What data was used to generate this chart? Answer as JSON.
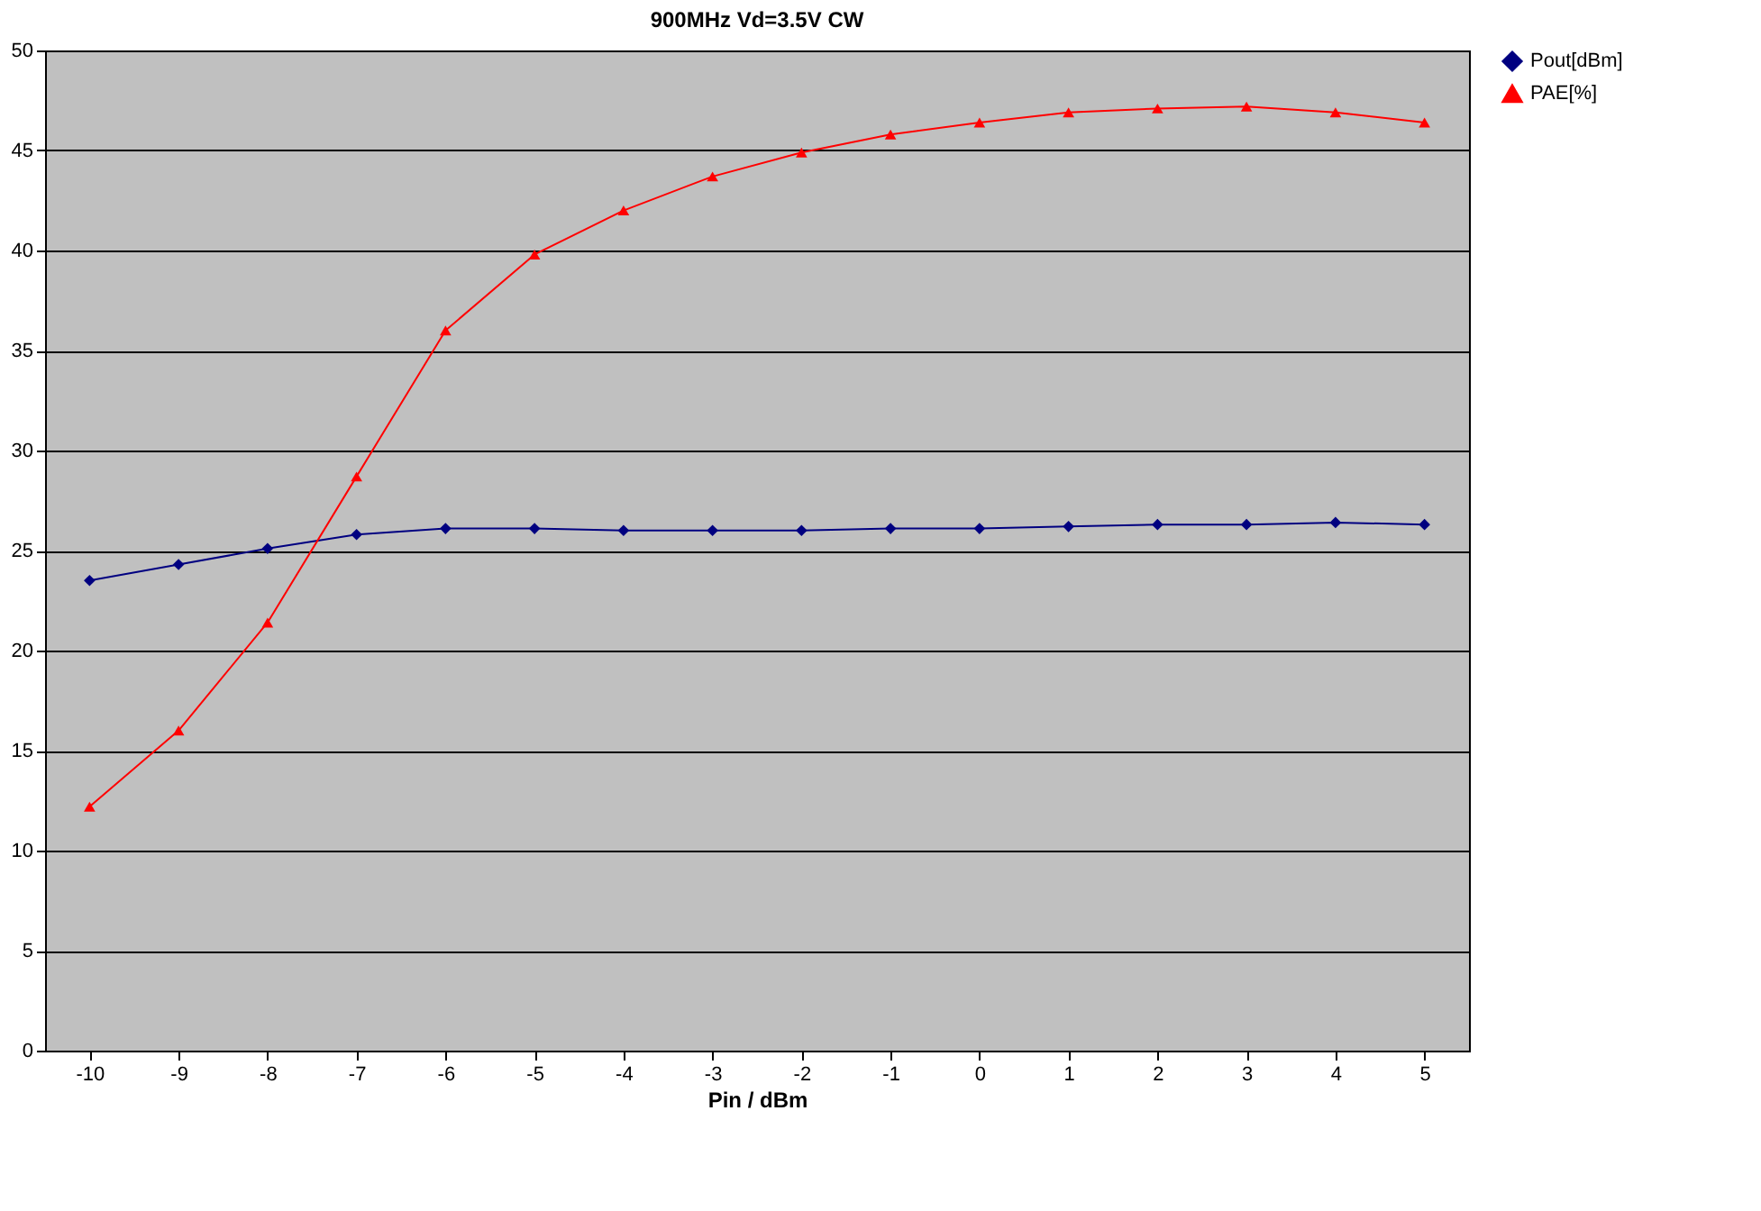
{
  "chart_data": {
    "type": "line",
    "title": "900MHz  Vd=3.5V  CW",
    "xlabel": "Pin / dBm",
    "categories": [
      "-10",
      "-9",
      "-8",
      "-7",
      "-6",
      "-5",
      "-4",
      "-3",
      "-2",
      "-1",
      "0",
      "1",
      "2",
      "3",
      "4",
      "5"
    ],
    "series": [
      {
        "name": "Pout[dBm]",
        "color": "#000080",
        "marker": "diamond",
        "values": [
          23.5,
          24.3,
          25.1,
          25.8,
          26.1,
          26.1,
          26.0,
          26.0,
          26.0,
          26.1,
          26.1,
          26.2,
          26.3,
          26.3,
          26.4,
          26.3
        ]
      },
      {
        "name": "PAE[%]",
        "color": "#ff0000",
        "marker": "triangle",
        "values": [
          12.2,
          16.0,
          21.4,
          28.7,
          36.0,
          39.8,
          42.0,
          43.7,
          44.9,
          45.8,
          46.4,
          46.9,
          47.1,
          47.2,
          46.9,
          46.4
        ]
      }
    ],
    "ylim": [
      0,
      50
    ],
    "yticks": [
      0,
      5,
      10,
      15,
      20,
      25,
      30,
      35,
      40,
      45,
      50
    ],
    "grid": "y",
    "legend": "right",
    "line_style": "solid"
  }
}
